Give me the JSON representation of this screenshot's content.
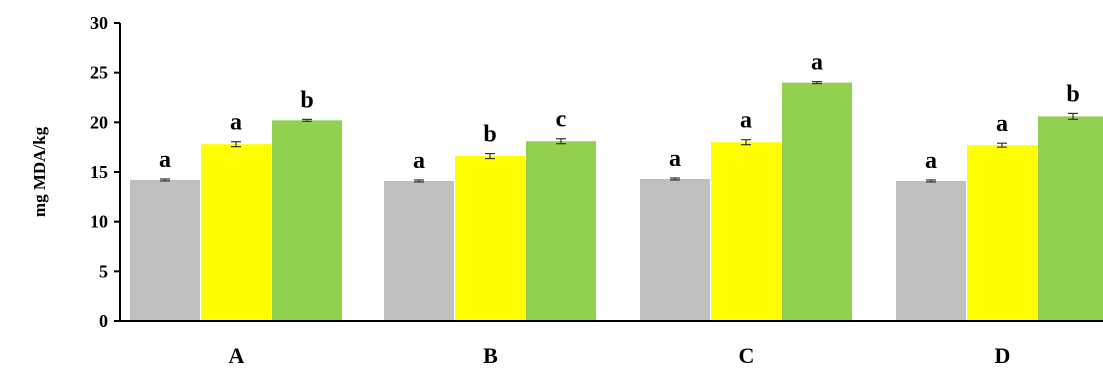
{
  "chart_data": {
    "type": "bar",
    "title": "",
    "xlabel": "",
    "ylabel": "mg MDA/kg",
    "ylim": [
      0,
      30
    ],
    "yticks": [
      0,
      5,
      10,
      15,
      20,
      25,
      30
    ],
    "grid": false,
    "categories": [
      "A",
      "B",
      "C",
      "D"
    ],
    "series": [
      {
        "color": "#bfbfbf",
        "values": [
          14.2,
          14.1,
          14.3,
          14.1
        ],
        "errors": [
          0.1,
          0.1,
          0.1,
          0.1
        ],
        "labels": [
          "a",
          "a",
          "a",
          "a"
        ]
      },
      {
        "color": "#ffff00",
        "values": [
          17.8,
          16.6,
          18.0,
          17.7
        ],
        "errors": [
          0.25,
          0.25,
          0.25,
          0.2
        ],
        "labels": [
          "a",
          "b",
          "a",
          "a"
        ]
      },
      {
        "color": "#92d050",
        "values": [
          20.2,
          18.1,
          24.0,
          20.6
        ],
        "errors": [
          0.1,
          0.25,
          0.1,
          0.3
        ],
        "labels": [
          "b",
          "c",
          "a",
          "b"
        ]
      }
    ]
  }
}
